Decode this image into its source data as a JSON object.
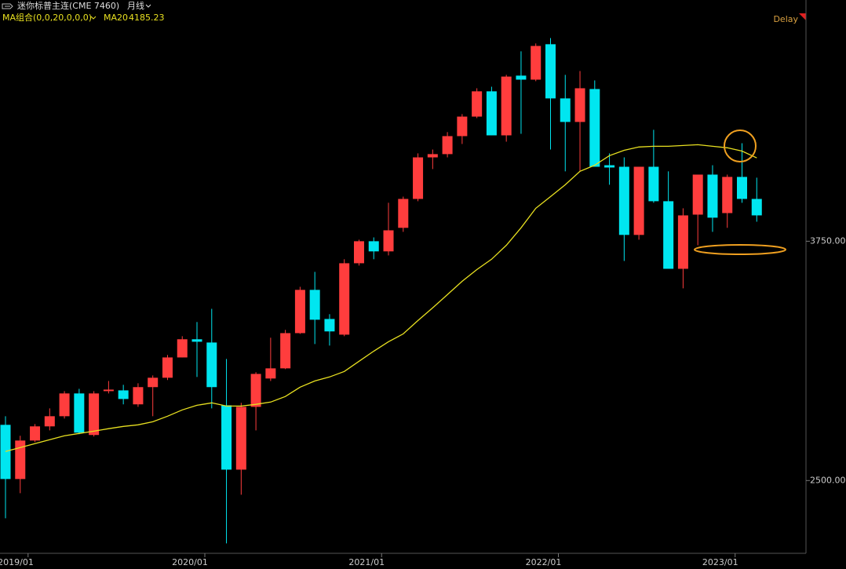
{
  "chart_data": {
    "type": "candlestick",
    "title": "迷你标普主连(CME 7460)",
    "period": "月线",
    "indicator": "MA组合(0,0,20,0,0,0)",
    "status": "Delay",
    "categories": [
      null,
      "2019/01",
      null,
      null,
      null,
      null,
      null,
      null,
      null,
      null,
      null,
      null,
      null,
      "2020/01",
      null,
      null,
      null,
      null,
      null,
      null,
      null,
      null,
      null,
      null,
      null,
      "2021/01",
      null,
      null,
      null,
      null,
      null,
      null,
      null,
      null,
      null,
      null,
      null,
      "2022/01",
      null,
      null,
      null,
      null,
      null,
      null,
      null,
      null,
      null,
      null,
      null,
      "2023/01",
      null,
      null
    ],
    "open": [
      2791,
      2508,
      2709,
      2783,
      2836,
      2955,
      2738,
      2967,
      2971,
      2898,
      2988,
      3037,
      3143,
      3238,
      3221,
      2893,
      2557,
      2885,
      3033,
      3086,
      3270,
      3496,
      3344,
      3262,
      3635,
      3750,
      3697,
      3820,
      3971,
      4188,
      4205,
      4299,
      4401,
      4533,
      4303,
      4615,
      4594,
      4779,
      4496,
      4373,
      4545,
      4147,
      4139,
      3783,
      4139,
      3959,
      3606,
      3889,
      4098,
      3897,
      4086,
      3971
    ],
    "high": [
      2836,
      2734,
      2795,
      2877,
      2967,
      2979,
      2967,
      3020,
      3000,
      3008,
      3049,
      3156,
      3254,
      3328,
      3397,
      3135,
      2906,
      3066,
      3246,
      3287,
      3512,
      3590,
      3369,
      3656,
      3758,
      3770,
      3951,
      3983,
      4209,
      4229,
      4320,
      4414,
      4549,
      4557,
      4619,
      4742,
      4783,
      4811,
      4619,
      4639,
      4590,
      4209,
      4188,
      4139,
      4332,
      4115,
      3922,
      4098,
      4147,
      4098,
      4262,
      4082
    ],
    "low": [
      2303,
      2434,
      2701,
      2762,
      2824,
      2742,
      2730,
      2955,
      2898,
      2885,
      2836,
      3025,
      3143,
      3041,
      2877,
      2172,
      2426,
      2762,
      3020,
      3082,
      3266,
      3213,
      3205,
      3254,
      3623,
      3656,
      3676,
      3799,
      3959,
      4127,
      4188,
      4258,
      4393,
      4303,
      4270,
      4311,
      4586,
      4229,
      4115,
      4115,
      4139,
      4045,
      3647,
      3758,
      3951,
      3606,
      3504,
      3729,
      3799,
      3820,
      3951,
      3852
    ],
    "close": [
      2508,
      2709,
      2783,
      2836,
      2955,
      2750,
      2955,
      2975,
      2926,
      2988,
      3037,
      3143,
      3238,
      3225,
      2988,
      2557,
      2885,
      3057,
      3086,
      3270,
      3496,
      3340,
      3279,
      3635,
      3750,
      3697,
      3807,
      3971,
      4188,
      4205,
      4299,
      4401,
      4533,
      4303,
      4610,
      4594,
      4770,
      4496,
      4373,
      4549,
      4139,
      4135,
      3783,
      4139,
      3959,
      3606,
      3885,
      4098,
      3873,
      4086,
      3971,
      3885
    ],
    "up_color": "#ff3d3d",
    "down_color": "#00e6f0",
    "series": [
      {
        "name": "MA20",
        "color": "#e8e020",
        "values": [
          2652,
          2672,
          2693,
          2713,
          2734,
          2746,
          2758,
          2771,
          2783,
          2791,
          2807,
          2836,
          2869,
          2893,
          2906,
          2889,
          2889,
          2898,
          2910,
          2939,
          2988,
          3020,
          3041,
          3070,
          3123,
          3176,
          3225,
          3266,
          3336,
          3402,
          3471,
          3541,
          3602,
          3656,
          3729,
          3820,
          3922,
          3983,
          4045,
          4115,
          4147,
          4197,
          4225,
          4242,
          4246,
          4246,
          4250,
          4254,
          4246,
          4238,
          4221,
          4185.23
        ]
      }
    ],
    "ylim": [
      2120,
      5010
    ],
    "yticks": [
      {
        "value": 2500,
        "label": "2500.00"
      },
      {
        "value": 3750,
        "label": "3750.00"
      }
    ]
  }
}
